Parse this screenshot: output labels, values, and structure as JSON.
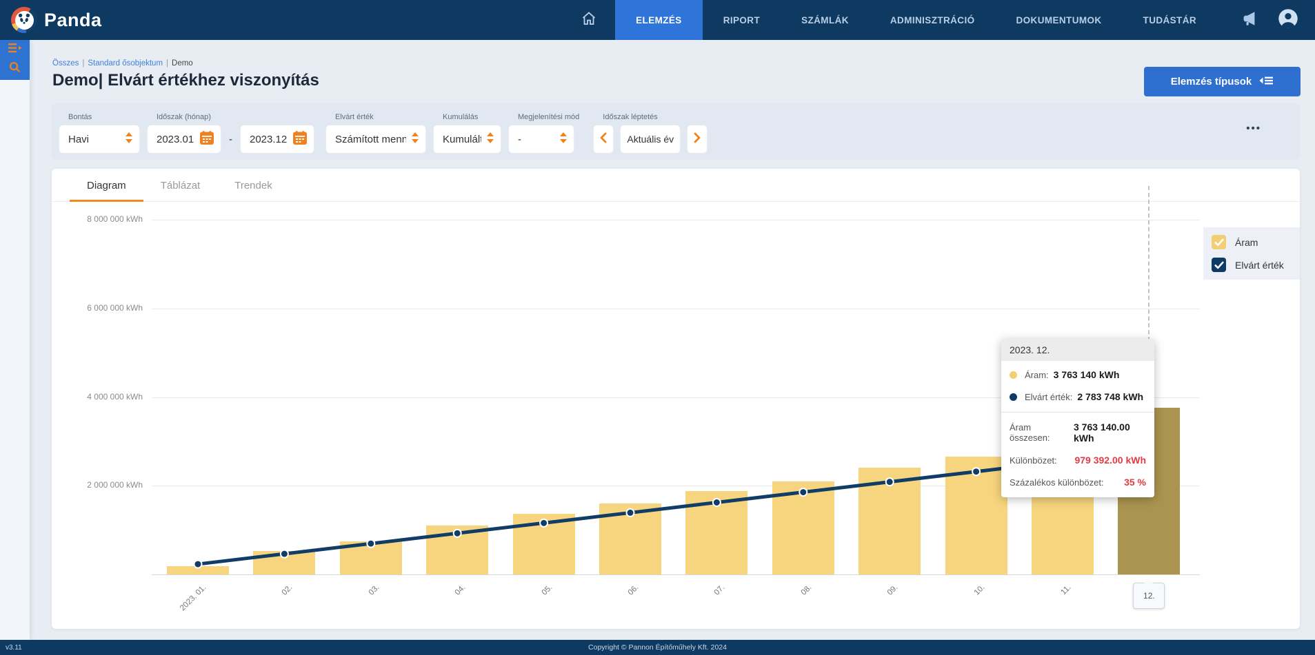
{
  "nav": {
    "brand": "Panda",
    "items": [
      {
        "label": "ELEMZÉS",
        "active": true
      },
      {
        "label": "RIPORT",
        "active": false
      },
      {
        "label": "SZÁMLÁK",
        "active": false
      },
      {
        "label": "ADMINISZTRÁCIÓ",
        "active": false
      },
      {
        "label": "DOKUMENTUMOK",
        "active": false
      },
      {
        "label": "TUDÁSTÁR",
        "active": false
      }
    ]
  },
  "breadcrumb": {
    "items": [
      "Összes",
      "Standard ősobjektum"
    ],
    "separator": "|",
    "current": "Demo"
  },
  "page": {
    "title": "Demo| Elvárt értékhez viszonyítás",
    "analysis_types_button": "Elemzés típusok"
  },
  "filters": {
    "bontas": {
      "label": "Bontás",
      "value": "Havi"
    },
    "idoszak": {
      "label": "Időszak (hónap)",
      "from": "2023.01.",
      "to": "2023.12.",
      "separator": "-"
    },
    "elvart_ertek": {
      "label": "Elvárt érték",
      "value": "Számított menn..."
    },
    "kumulalas": {
      "label": "Kumulálás",
      "value": "Kumulált"
    },
    "megjelenitesi_mod": {
      "label": "Megjelenítési mód",
      "value": "-"
    },
    "idoszak_leptetes": {
      "label": "Időszak léptetés",
      "value": "Aktuális év"
    },
    "more_button": "•••"
  },
  "tabs": [
    {
      "label": "Diagram",
      "active": true
    },
    {
      "label": "Táblázat",
      "active": false
    },
    {
      "label": "Trendek",
      "active": false
    }
  ],
  "chart_data": {
    "type": "bar",
    "title": "",
    "categories": [
      "2023. 01.",
      "02.",
      "03.",
      "04.",
      "05.",
      "06.",
      "07.",
      "08.",
      "09.",
      "10.",
      "11.",
      "12."
    ],
    "series": [
      {
        "name": "Áram",
        "type": "bar",
        "color": "#f7d57e",
        "highlight_color": "#ab9450",
        "values": [
          186000,
          528000,
          746000,
          1103000,
          1368000,
          1601000,
          1880000,
          2098000,
          2409000,
          2657000,
          3000000,
          3763140
        ]
      },
      {
        "name": "Elvárt érték",
        "type": "line",
        "color": "#103c66",
        "values": [
          231979,
          463958,
          695937,
          927916,
          1159895,
          1391874,
          1623853,
          1855832,
          2087811,
          2319790,
          2551769,
          2783748
        ]
      }
    ],
    "y_axis": [
      {
        "value": 2000000,
        "label": "2 000 000 kWh"
      },
      {
        "value": 4000000,
        "label": "4 000 000 kWh"
      },
      {
        "value": 6000000,
        "label": "6 000 000 kWh"
      },
      {
        "value": 8000000,
        "label": "8 000 000 kWh"
      }
    ],
    "ylim": [
      0,
      8800000
    ],
    "grid": true,
    "legend_position": "right",
    "highlight_index": 11,
    "unit": "kWh"
  },
  "legend": [
    {
      "label": "Áram",
      "color": "#f2cf72",
      "checked": true
    },
    {
      "label": "Elvárt érték",
      "color": "#0e3a66",
      "checked": true
    }
  ],
  "tooltip": {
    "title": "2023. 12.",
    "series_rows": [
      {
        "dot_color": "#f2cf72",
        "label": "Áram:",
        "value": "3 763 140 kWh"
      },
      {
        "dot_color": "#0e3a66",
        "label": "Elvárt érték:",
        "value": "2 783 748 kWh"
      }
    ],
    "summary_rows": [
      {
        "label": "Áram összesen:",
        "value": "3 763 140.00 kWh",
        "red": false
      },
      {
        "label": "Különbözet:",
        "value": "979 392.00 kWh",
        "red": true
      },
      {
        "label": "Százalékos különbözet:",
        "value": "35 %",
        "red": true
      }
    ]
  },
  "footer": {
    "version": "v3.11",
    "copyright": "Copyright © Pannon Építőműhely Kft. 2024"
  }
}
